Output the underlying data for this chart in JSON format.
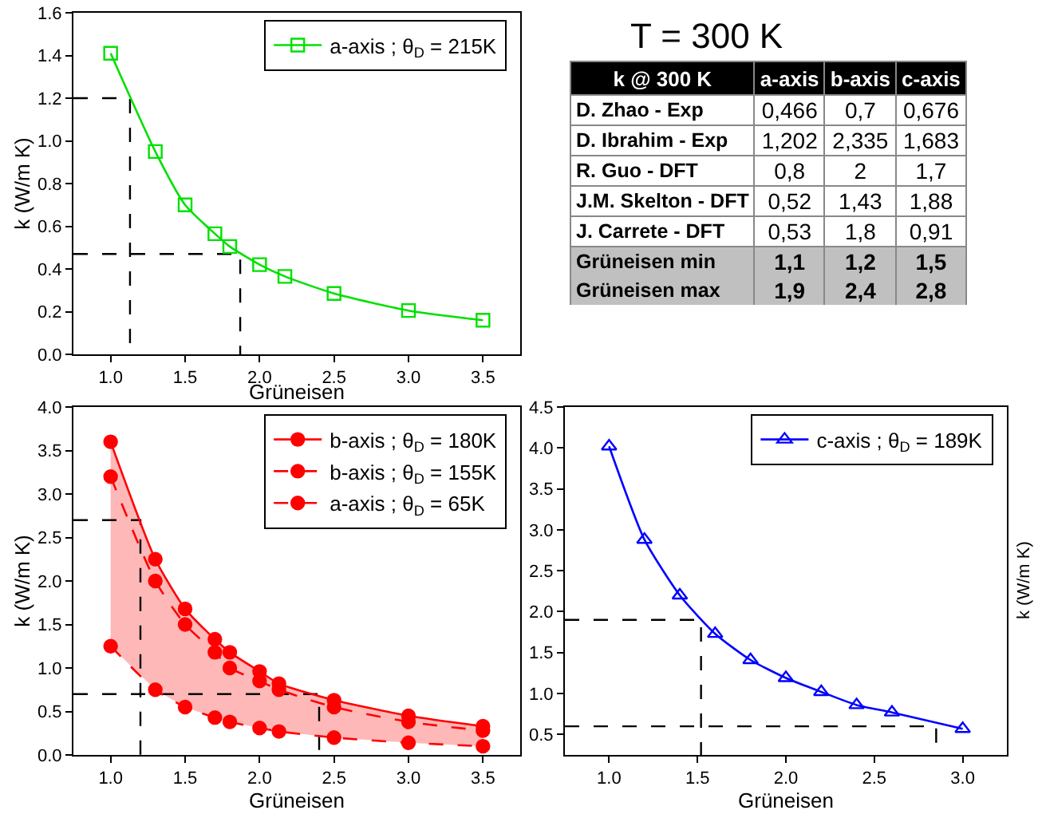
{
  "chart_data": [
    {
      "type": "line",
      "xlabel": "Grüneisen",
      "ylabel": "k (W/m K)",
      "legend": "top right",
      "marker": "square",
      "line_style": "solid",
      "xlim": [
        0.75,
        3.75
      ],
      "xticks": [
        {
          "value": 1,
          "label": "1.0"
        },
        1.5,
        {
          "value": 2,
          "label": "2.0"
        },
        2.5,
        {
          "value": 3,
          "label": "3.0"
        },
        3.5
      ],
      "ylim": [
        0,
        1.6
      ],
      "yticks": [
        {
          "value": 0,
          "label": "0.0"
        },
        0.2,
        0.4,
        0.6,
        0.8,
        {
          "value": 1,
          "label": "1.0"
        },
        1.2,
        1.4,
        1.6
      ],
      "series": [
        {
          "name": "a-axis ; θ$_{D}$ = 215K",
          "color": "#00e000",
          "x": [
            1.0,
            1.3,
            1.5,
            1.7,
            1.8,
            2.0,
            2.17,
            2.5,
            3.0,
            3.5
          ],
          "values": [
            1.41,
            0.95,
            0.7,
            0.565,
            0.505,
            0.42,
            0.365,
            0.285,
            0.205,
            0.16
          ]
        },
        {
          "color": "#000000",
          "line_style": "dashed",
          "marker": "none",
          "x": [
            0.75,
            1.13,
            1.13
          ],
          "values": [
            1.2,
            1.2,
            0
          ]
        },
        {
          "color": "#000000",
          "line_style": "dashed",
          "marker": "none",
          "x": [
            0.75,
            1.87,
            1.87
          ],
          "values": [
            0.47,
            0.47,
            0
          ]
        }
      ]
    },
    {
      "type": "other",
      "title": "T = 300 K",
      "ylabel": "k @ 300 K",
      "categories": [
        "a-axis",
        "b-axis",
        "c-axis"
      ],
      "y_categories": [
        "D. Zhao - Exp",
        "D. Ibrahim - Exp",
        "R. Guo - DFT",
        "J.M. Skelton - DFT",
        "J. Carrete - DFT",
        "Grüneisen min",
        "Grüneisen max"
      ],
      "cell_labels": [
        [
          "0,466",
          "0,7",
          "0,676"
        ],
        [
          "1,202",
          "2,335",
          "1,683"
        ],
        [
          "0,8",
          "2",
          "1,7"
        ],
        [
          "0,52",
          "1,43",
          "1,88"
        ],
        [
          "0,53",
          "1,8",
          "0,91"
        ],
        [
          "1,1",
          "1,2",
          "1,5"
        ],
        [
          "1,9",
          "2,4",
          "2,8"
        ]
      ]
    },
    {
      "type": "line",
      "xlabel": "Grüneisen",
      "ylabel": "k (W/m K)",
      "legend": "top right",
      "marker": "circle",
      "line_style": "solid",
      "xlim": [
        0.75,
        3.75
      ],
      "xticks": [
        {
          "value": 1,
          "label": "1.0"
        },
        1.5,
        {
          "value": 2,
          "label": "2.0"
        },
        2.5,
        {
          "value": 3,
          "label": "3.0"
        },
        3.5
      ],
      "ylim": [
        0,
        4
      ],
      "yticks": [
        {
          "value": 0,
          "label": "0.0"
        },
        0.5,
        {
          "value": 1,
          "label": "1.0"
        },
        1.5,
        {
          "value": 2,
          "label": "2.0"
        },
        2.5,
        {
          "value": 3,
          "label": "3.0"
        },
        3.5,
        {
          "value": 4,
          "label": "4.0"
        }
      ],
      "series": [
        {
          "name": "b-axis ; θ$_{D}$ = 180K",
          "color": "#ff0000",
          "x": [
            1.0,
            1.3,
            1.5,
            1.7,
            1.8,
            2.0,
            2.13,
            2.5,
            3.0,
            3.5
          ],
          "values": [
            3.6,
            2.25,
            1.68,
            1.33,
            1.18,
            0.96,
            0.82,
            0.63,
            0.45,
            0.33
          ],
          "lower": [
            1.25,
            0.75,
            0.55,
            0.43,
            0.38,
            0.31,
            0.27,
            0.2,
            0.14,
            0.1
          ],
          "upper": [
            3.6,
            2.25,
            1.68,
            1.33,
            1.18,
            0.96,
            0.82,
            0.63,
            0.45,
            0.33
          ]
        },
        {
          "name": "b-axis ; θ$_{D}$ = 155K",
          "color": "#ff0000",
          "line_style": "dashed",
          "x": [
            1.0,
            1.3,
            1.5,
            1.7,
            1.8,
            2.0,
            2.13,
            2.5,
            3.0,
            3.5
          ],
          "values": [
            3.2,
            2.0,
            1.5,
            1.18,
            1.0,
            0.85,
            0.75,
            0.55,
            0.38,
            0.28
          ]
        },
        {
          "name": "a-axis ; θ$_{D}$ = 65K",
          "color": "#ff0000",
          "line_style": "dashed",
          "x": [
            1.0,
            1.3,
            1.5,
            1.7,
            1.8,
            2.0,
            2.13,
            2.5,
            3.0,
            3.5
          ],
          "values": [
            1.25,
            0.75,
            0.55,
            0.43,
            0.38,
            0.31,
            0.27,
            0.2,
            0.14,
            0.1
          ]
        },
        {
          "color": "#000000",
          "line_style": "dashed",
          "marker": "none",
          "x": [
            0.75,
            1.2,
            1.2
          ],
          "values": [
            2.7,
            2.7,
            0
          ]
        },
        {
          "color": "#000000",
          "line_style": "dashed",
          "marker": "none",
          "x": [
            0.75,
            2.4,
            2.4
          ],
          "values": [
            0.7,
            0.7,
            0
          ]
        }
      ]
    },
    {
      "type": "line",
      "xlabel": "Grüneisen",
      "ylabel": "k (W/m K)",
      "legend": "top right",
      "marker": "triangle",
      "line_style": "solid",
      "xlim": [
        0.75,
        3.25
      ],
      "xticks": [
        {
          "value": 1,
          "label": "1.0"
        },
        1.5,
        {
          "value": 2,
          "label": "2.0"
        },
        2.5,
        {
          "value": 3,
          "label": "3.0"
        }
      ],
      "ylim": [
        0.25,
        4.5
      ],
      "yticks": [
        0.5,
        {
          "value": 1,
          "label": "1.0"
        },
        1.5,
        {
          "value": 2,
          "label": "2.0"
        },
        2.5,
        {
          "value": 3,
          "label": "3.0"
        },
        3.5,
        {
          "value": 4,
          "label": "4.0"
        },
        4.5
      ],
      "series": [
        {
          "name": "c-axis ; θ$_{D}$ = 189K",
          "color": "#0000ff",
          "x": [
            1.0,
            1.2,
            1.4,
            1.6,
            1.8,
            2.0,
            2.2,
            2.4,
            2.6,
            3.0
          ],
          "values": [
            4.02,
            2.88,
            2.2,
            1.73,
            1.41,
            1.19,
            1.02,
            0.86,
            0.77,
            0.57
          ]
        },
        {
          "color": "#000000",
          "line_style": "dashed",
          "marker": "none",
          "x": [
            0.75,
            1.52,
            1.52
          ],
          "values": [
            1.9,
            1.9,
            0.25
          ]
        },
        {
          "color": "#000000",
          "line_style": "dashed",
          "marker": "none",
          "x": [
            0.75,
            2.85,
            2.85
          ],
          "values": [
            0.6,
            0.6,
            0.25
          ]
        }
      ]
    }
  ]
}
